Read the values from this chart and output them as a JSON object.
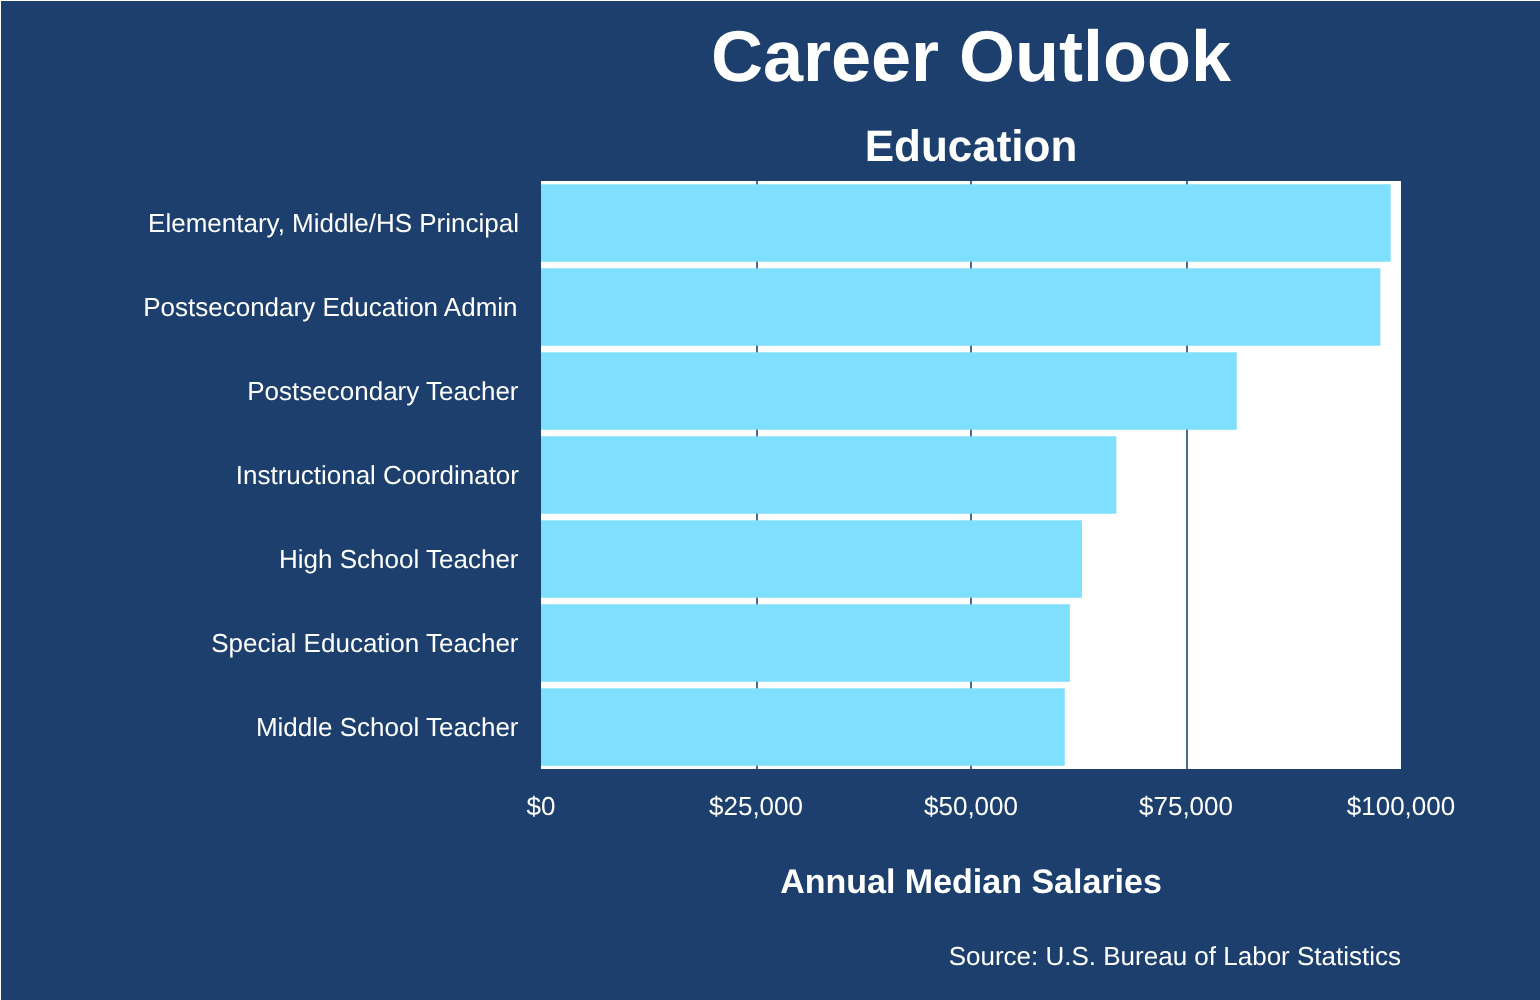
{
  "chart_data": {
    "type": "bar",
    "orientation": "horizontal",
    "title": "Career Outlook",
    "subtitle": "Education",
    "xlabel": "Annual Median Salaries",
    "categories": [
      "Elementary, Middle/HS Principal",
      "Postsecondary Education Admin",
      "Postsecondary Teacher",
      "Instructional Coordinator",
      "High School Teacher",
      "Special Education Teacher",
      "Middle School Teacher"
    ],
    "values": [
      98800,
      97600,
      80900,
      66900,
      62900,
      61500,
      60900
    ],
    "color": "#7fdfff",
    "xlim": [
      0,
      100000
    ],
    "xticks": [
      {
        "value": 0,
        "label": "$0"
      },
      {
        "value": 25000,
        "label": "$25,000"
      },
      {
        "value": 50000,
        "label": "$50,000"
      },
      {
        "value": 75000,
        "label": "$75,000"
      },
      {
        "value": 100000,
        "label": "$100,000"
      }
    ],
    "grid": "x",
    "annotations": [
      "Source: U.S. Bureau of Labor Statistics"
    ]
  }
}
